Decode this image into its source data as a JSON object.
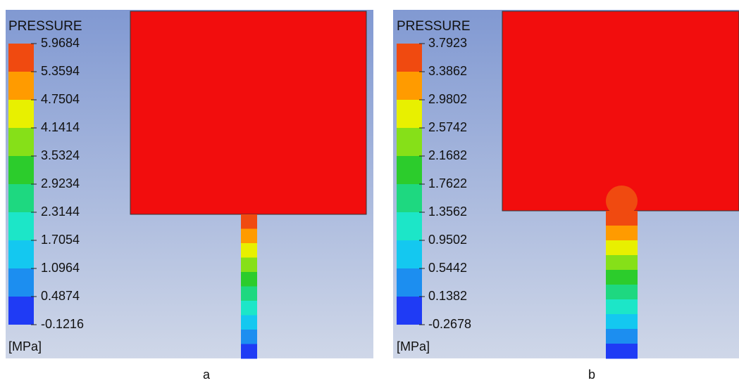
{
  "panels": [
    {
      "title": "PRESSURE",
      "unit": "[MPa]",
      "caption": "a",
      "ticks": [
        "5.9684",
        "5.3594",
        "4.7504",
        "4.1414",
        "3.5324",
        "2.9234",
        "2.3144",
        "1.7054",
        "1.0964",
        "0.4874",
        "-0.1216"
      ]
    },
    {
      "title": "PRESSURE",
      "unit": "[MPa]",
      "caption": "b",
      "ticks": [
        "3.7923",
        "3.3862",
        "2.9802",
        "2.5742",
        "2.1682",
        "1.7622",
        "1.3562",
        "0.9502",
        "0.5442",
        "0.1382",
        "-0.2678"
      ]
    }
  ]
}
